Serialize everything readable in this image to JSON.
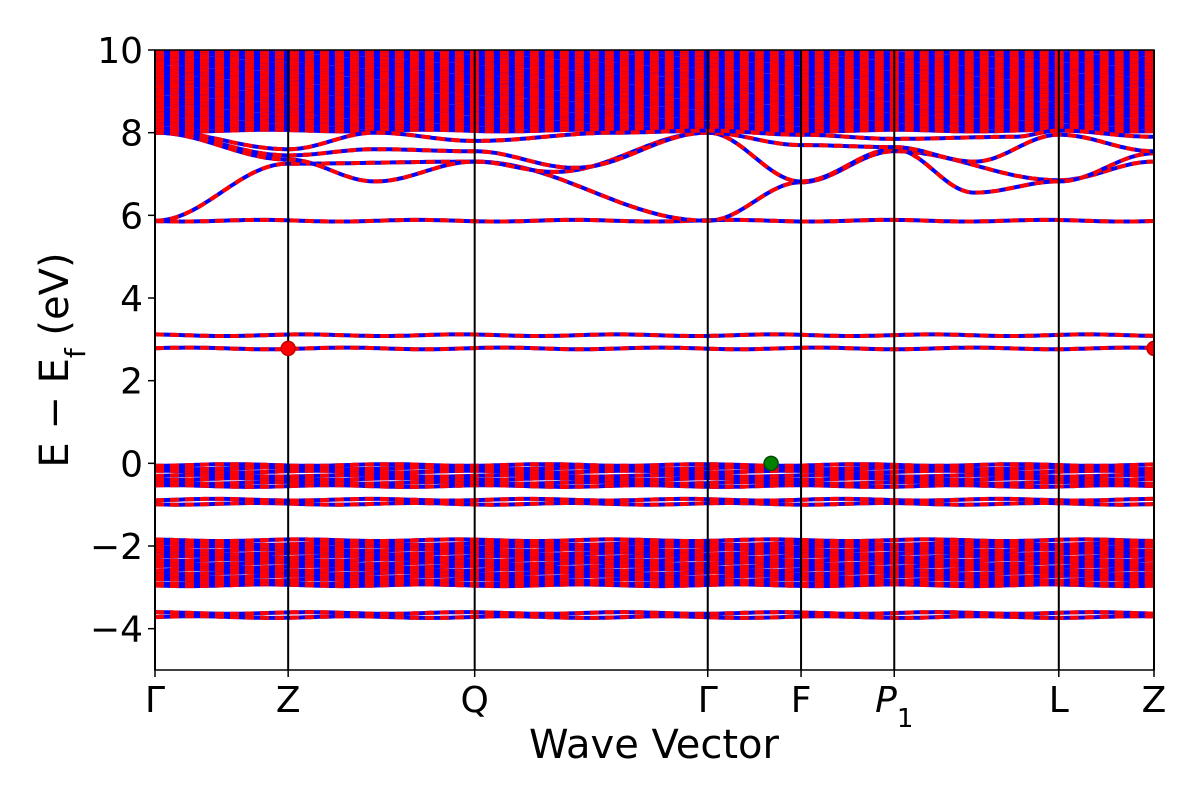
{
  "chart_data": {
    "type": "line",
    "xlabel": "Wave Vector",
    "ylabel": "E − E",
    "ylabel_subscript": "f",
    "ylabel_unit": " (eV)",
    "ylim": [
      -5,
      10
    ],
    "yticks": [
      -4,
      -2,
      0,
      2,
      4,
      6,
      8,
      10
    ],
    "xlim": [
      0,
      1
    ],
    "grid": false,
    "kpoints": [
      {
        "label": "Γ",
        "x": 0.0
      },
      {
        "label": "Z",
        "x": 0.1333
      },
      {
        "label": "Q",
        "x": 0.32
      },
      {
        "label": "Γ",
        "x": 0.5533
      },
      {
        "label": "F",
        "x": 0.6467
      },
      {
        "label": "P",
        "sub": "1",
        "italic": true,
        "x": 0.74
      },
      {
        "label": "L",
        "x": 0.9047
      },
      {
        "label": "Z",
        "x": 1.0
      }
    ],
    "series_colors": {
      "spin_up": "#0000ff",
      "spin_down": "#ff0000"
    },
    "flat_bands": [
      -3.72,
      -3.62,
      -2.95,
      -2.9,
      -2.82,
      -2.74,
      -2.66,
      -2.58,
      -2.5,
      -2.42,
      -2.34,
      -2.26,
      -2.18,
      -2.1,
      -2.02,
      -1.95,
      -1.86,
      -0.98,
      -0.88,
      -0.55,
      -0.47,
      -0.38,
      -0.3,
      -0.2,
      -0.12,
      -0.04,
      2.78,
      3.1,
      5.87
    ],
    "upper_manifold": {
      "min": 8.05,
      "max": 10.0,
      "count": 30
    },
    "dispersive_bands": [
      {
        "x": [
          0.0,
          0.1333,
          0.32,
          0.5533,
          0.6467,
          0.74,
          0.9047,
          1.0
        ],
        "y": [
          5.87,
          7.25,
          7.3,
          5.87,
          6.8,
          7.55,
          6.85,
          7.3
        ]
      },
      {
        "x": [
          0.0,
          0.1333,
          0.22,
          0.32,
          0.4,
          0.5533,
          0.6467,
          0.74,
          0.82,
          0.9047,
          1.0
        ],
        "y": [
          8.0,
          7.35,
          6.82,
          7.3,
          7.05,
          8.0,
          6.82,
          7.6,
          6.55,
          6.82,
          7.5
        ]
      },
      {
        "x": [
          0.0,
          0.1333,
          0.22,
          0.32,
          0.42,
          0.5533,
          0.6467,
          0.74,
          0.82,
          0.9047,
          1.0
        ],
        "y": [
          8.0,
          7.45,
          7.6,
          7.55,
          7.15,
          8.0,
          7.7,
          7.65,
          7.3,
          7.95,
          7.55
        ]
      },
      {
        "x": [
          0.0,
          0.1333,
          0.22,
          0.32,
          0.46,
          0.5533,
          0.6467,
          0.74,
          0.86,
          0.9047,
          1.0
        ],
        "y": [
          8.05,
          7.6,
          8.0,
          7.8,
          8.0,
          8.05,
          7.95,
          7.85,
          7.9,
          8.05,
          7.9
        ]
      }
    ],
    "markers": [
      {
        "x": 0.1333,
        "y": 2.78,
        "color": "#ff0000",
        "edge": "#c00000"
      },
      {
        "x": 1.0,
        "y": 2.78,
        "color": "#ff0000",
        "edge": "#c00000"
      },
      {
        "x": 0.6167,
        "y": 0.0,
        "color": "#008000",
        "edge": "#004d00"
      }
    ]
  }
}
